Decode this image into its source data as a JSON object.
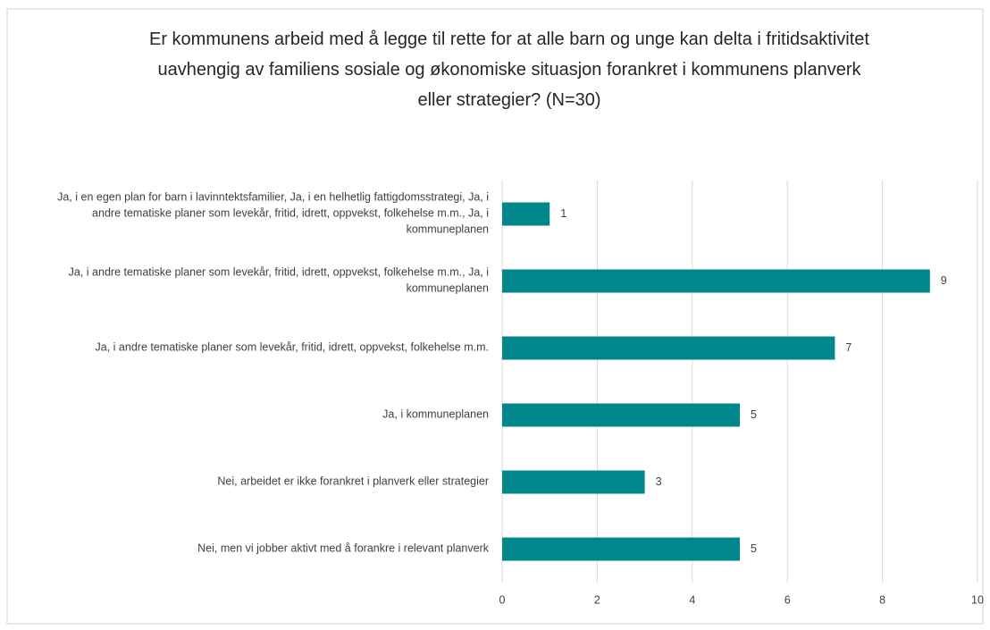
{
  "chart_data": {
    "type": "bar",
    "orientation": "horizontal",
    "title": "Er kommunens arbeid med å legge til rette for at alle barn og unge kan delta i fritidsaktivitet uavhengig av familiens sosiale og økonomiske situasjon forankret i kommunens planverk eller strategier? (N=30)",
    "categories": [
      "Ja, i en egen plan for barn i lavinntektsfamilier, Ja, i en helhetlig fattigdomsstrategi, Ja, i andre tematiske planer som levekår, fritid, idrett, oppvekst, folkehelse m.m., Ja, i kommuneplanen",
      "Ja, i andre tematiske planer som levekår, fritid, idrett, oppvekst, folkehelse m.m., Ja, i kommuneplanen",
      "Ja, i andre tematiske planer som levekår, fritid, idrett, oppvekst, folkehelse m.m.",
      "Ja, i kommuneplanen",
      "Nei, arbeidet er ikke forankret i planverk eller strategier",
      "Nei, men vi jobber aktivt med å forankre i relevant planverk"
    ],
    "values": [
      1,
      9,
      7,
      5,
      3,
      5
    ],
    "color": "#00868b",
    "xlim": [
      0,
      10
    ],
    "xticks": [
      0,
      2,
      4,
      6,
      8,
      10
    ],
    "grid": true
  }
}
